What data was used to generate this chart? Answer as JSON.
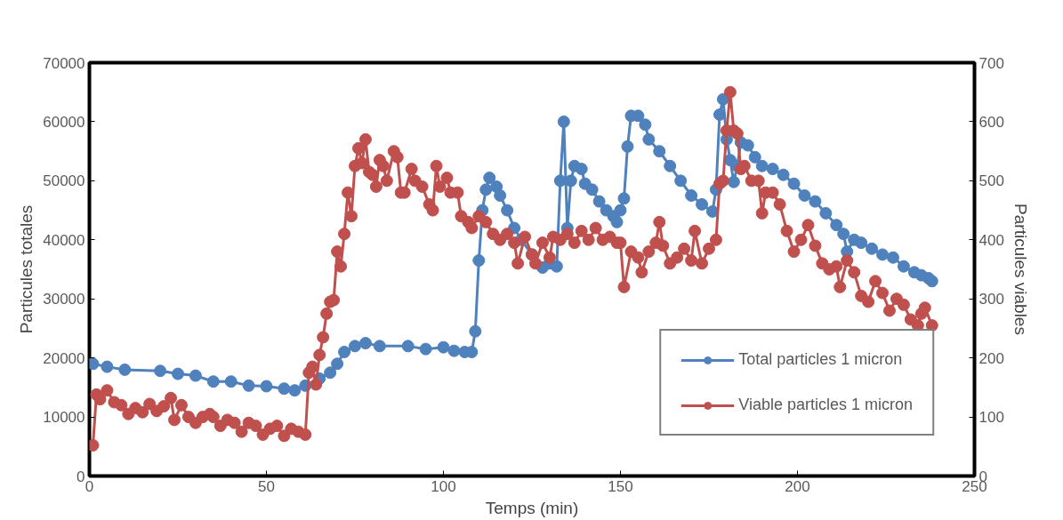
{
  "chart_data": {
    "type": "line",
    "xlabel": "Temps (min)",
    "ylabel": "Particules totales",
    "y2label": "Particules viables",
    "xlim": [
      0,
      250
    ],
    "xticks": [
      0,
      50,
      100,
      150,
      200,
      250
    ],
    "ylim": [
      0,
      70000
    ],
    "yticks": [
      0,
      10000,
      20000,
      30000,
      40000,
      50000,
      60000,
      70000
    ],
    "y2lim": [
      0,
      700
    ],
    "y2ticks": [
      0,
      100,
      200,
      300,
      400,
      500,
      600,
      700
    ],
    "grid": false,
    "legend": "bottom right",
    "marker": "circle",
    "line_style": "solid",
    "series": [
      {
        "name": "Total particles 1 micron",
        "color": "#4f81bd",
        "x": [
          1,
          5,
          10,
          20,
          25,
          30,
          35,
          40,
          45,
          50,
          55,
          58,
          61,
          65,
          68,
          70,
          72,
          75,
          78,
          82,
          90,
          95,
          100,
          103,
          106,
          108,
          109,
          110,
          111,
          112,
          113,
          115,
          116,
          118,
          120,
          122,
          125,
          128,
          130,
          132,
          133,
          134,
          135,
          136,
          137,
          139,
          140,
          142,
          144,
          146,
          148,
          149,
          150,
          151,
          152,
          153,
          155,
          157,
          158,
          161,
          164,
          167,
          170,
          173,
          176,
          177,
          178,
          179,
          180,
          181,
          182,
          183,
          184,
          186,
          188,
          190,
          193,
          196,
          199,
          202,
          205,
          208,
          211,
          213,
          214,
          216,
          218,
          221,
          224,
          227,
          230,
          233,
          235,
          237,
          238
        ],
        "values": [
          19000,
          18500,
          18000,
          17800,
          17300,
          17000,
          16000,
          16000,
          15300,
          15200,
          14800,
          14500,
          15300,
          16500,
          17500,
          19000,
          21000,
          22000,
          22500,
          22000,
          22000,
          21500,
          21800,
          21200,
          21000,
          21000,
          24500,
          36500,
          45000,
          48500,
          50500,
          49000,
          47500,
          45000,
          42000,
          40000,
          37500,
          35300,
          36000,
          35500,
          50000,
          60000,
          42000,
          50000,
          52500,
          52000,
          49500,
          48500,
          46500,
          45000,
          44000,
          43000,
          45000,
          47000,
          55800,
          61000,
          61000,
          59500,
          57000,
          55000,
          52500,
          50000,
          47500,
          46000,
          44800,
          48500,
          61200,
          63800,
          57000,
          53500,
          49800,
          52500,
          56500,
          56000,
          54000,
          52500,
          52000,
          51000,
          49500,
          47500,
          46500,
          44500,
          42500,
          41000,
          38000,
          40000,
          39500,
          38500,
          37500,
          37000,
          35500,
          34500,
          34000,
          33500,
          33000
        ]
      },
      {
        "name": "Viable particles 1 micron",
        "color": "#c0504d",
        "axis": "y2",
        "x": [
          1,
          2,
          3,
          5,
          7,
          9,
          11,
          13,
          15,
          17,
          19,
          21,
          23,
          24,
          26,
          28,
          30,
          32,
          34,
          35,
          37,
          39,
          41,
          43,
          45,
          47,
          49,
          51,
          53,
          55,
          57,
          59,
          61,
          62,
          63,
          64,
          65,
          66,
          67,
          68,
          69,
          70,
          71,
          72,
          73,
          74,
          75,
          76,
          77,
          78,
          79,
          80,
          81,
          82,
          83,
          84,
          86,
          87,
          88,
          89,
          91,
          92,
          94,
          96,
          97,
          98,
          99,
          101,
          102,
          104,
          105,
          107,
          108,
          110,
          112,
          114,
          116,
          118,
          120,
          121,
          123,
          125,
          126,
          128,
          130,
          131,
          133,
          135,
          137,
          139,
          141,
          143,
          145,
          147,
          149,
          150,
          151,
          153,
          155,
          156,
          158,
          160,
          161,
          162,
          164,
          166,
          168,
          170,
          171,
          173,
          175,
          177,
          178,
          179,
          180,
          181,
          182,
          183,
          184,
          185,
          187,
          189,
          190,
          191,
          193,
          195,
          197,
          199,
          201,
          203,
          205,
          207,
          209,
          211,
          212,
          214,
          216,
          218,
          220,
          222,
          224,
          226,
          228,
          230,
          232,
          234,
          235,
          236,
          238
        ],
        "values": [
          52,
          138,
          130,
          145,
          125,
          120,
          105,
          115,
          108,
          122,
          110,
          118,
          132,
          95,
          120,
          100,
          90,
          100,
          105,
          100,
          85,
          95,
          90,
          75,
          90,
          85,
          70,
          80,
          85,
          68,
          80,
          75,
          70,
          175,
          185,
          155,
          205,
          235,
          275,
          295,
          298,
          380,
          355,
          410,
          480,
          440,
          525,
          555,
          530,
          570,
          515,
          510,
          490,
          535,
          525,
          500,
          550,
          540,
          480,
          480,
          520,
          500,
          490,
          460,
          450,
          525,
          490,
          505,
          480,
          480,
          440,
          430,
          420,
          440,
          430,
          410,
          400,
          410,
          395,
          360,
          405,
          375,
          360,
          395,
          370,
          405,
          400,
          410,
          395,
          415,
          400,
          420,
          400,
          405,
          395,
          395,
          320,
          380,
          370,
          345,
          380,
          395,
          430,
          390,
          360,
          370,
          385,
          365,
          415,
          360,
          385,
          400,
          495,
          500,
          585,
          650,
          585,
          580,
          520,
          525,
          500,
          500,
          445,
          480,
          480,
          460,
          415,
          380,
          400,
          425,
          390,
          360,
          350,
          355,
          320,
          365,
          345,
          305,
          295,
          330,
          310,
          280,
          300,
          290,
          265,
          255,
          275,
          285,
          255
        ]
      }
    ]
  }
}
